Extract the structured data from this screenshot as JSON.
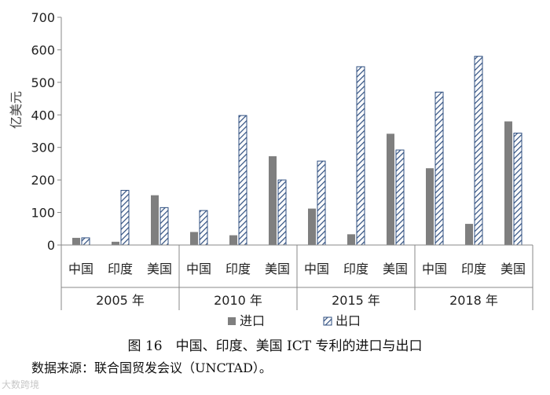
{
  "chart_data": {
    "type": "bar",
    "ylabel": "亿美元",
    "ylim": [
      0,
      700
    ],
    "yticks": [
      "0",
      "100",
      "200",
      "300",
      "400",
      "500",
      "600",
      "700"
    ],
    "grid": false,
    "legend_position": "bottom",
    "groups": [
      {
        "year": "2005 年",
        "categories": [
          "中国",
          "印度",
          "美国"
        ],
        "import": [
          22,
          10,
          153
        ],
        "export": [
          22,
          168,
          115
        ]
      },
      {
        "year": "2010 年",
        "categories": [
          "中国",
          "印度",
          "美国"
        ],
        "import": [
          40,
          30,
          273
        ],
        "export": [
          106,
          398,
          200
        ]
      },
      {
        "year": "2015 年",
        "categories": [
          "中国",
          "印度",
          "美国"
        ],
        "import": [
          112,
          33,
          342
        ],
        "export": [
          258,
          548,
          292
        ]
      },
      {
        "year": "2018 年",
        "categories": [
          "中国",
          "印度",
          "美国"
        ],
        "import": [
          236,
          65,
          380
        ],
        "export": [
          470,
          580,
          344
        ]
      }
    ],
    "series": [
      {
        "name": "进口",
        "color": "#7f7f7f"
      },
      {
        "name": "出口",
        "color": "#2f4f80",
        "pattern": "diagonal-hatch"
      }
    ]
  },
  "caption": "图 16　中国、印度、美国 ICT 专利的进口与出口",
  "source": "数据来源：联合国贸发会议（UNCTAD）。",
  "watermark": "大数跨境"
}
